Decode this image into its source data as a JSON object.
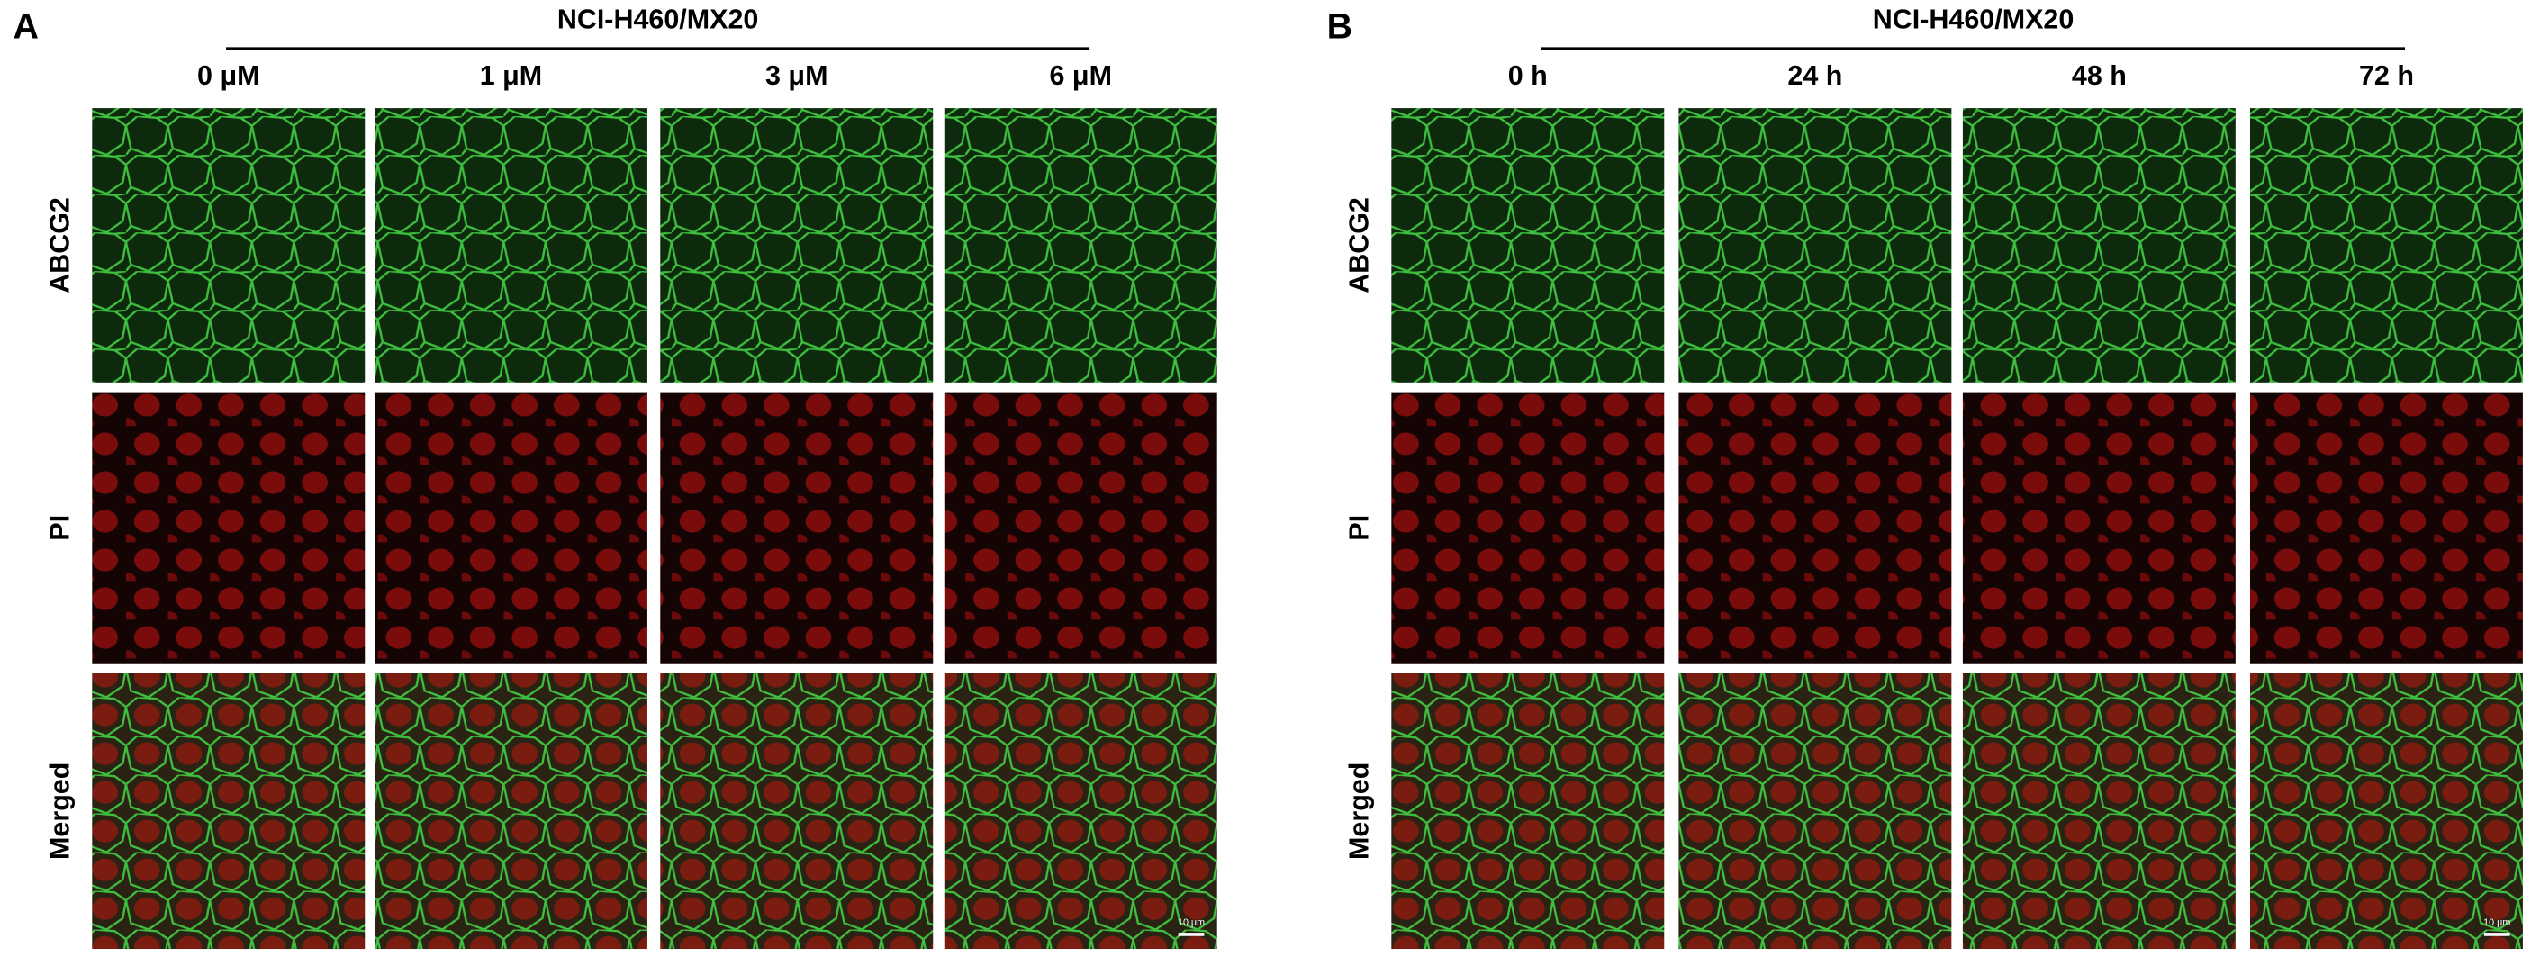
{
  "panels": [
    {
      "label": "A",
      "header": "NCI-H460/MX20",
      "columns": [
        "0 μM",
        "1 μM",
        "3 μM",
        "6 μM"
      ],
      "rows": [
        "ABCG2",
        "PI",
        "Merged"
      ],
      "scale_bar": "10 μm"
    },
    {
      "label": "B",
      "header": "NCI-H460/MX20",
      "columns": [
        "0 h",
        "24 h",
        "48 h",
        "72 h"
      ],
      "rows": [
        "ABCG2",
        "PI",
        "Merged"
      ],
      "scale_bar": "10 μm"
    }
  ]
}
